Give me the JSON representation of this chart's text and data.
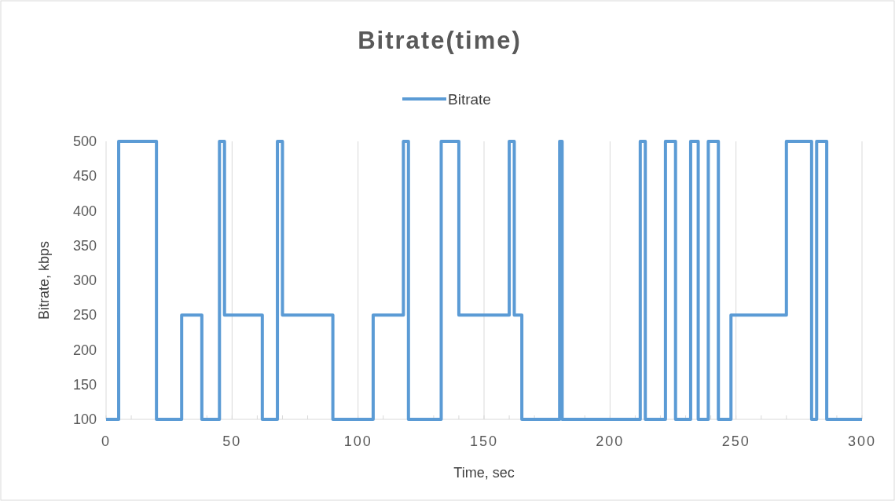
{
  "chart_data": {
    "type": "step",
    "title": "Bitrate(time)",
    "xlabel": "Time, sec",
    "ylabel": "Bitrate, kbps",
    "x": [
      0,
      5,
      20,
      30,
      38,
      45,
      47,
      62,
      68,
      70,
      90,
      106,
      118,
      120,
      133,
      140,
      160,
      162,
      165,
      180,
      181,
      212,
      214,
      222,
      226,
      232,
      235,
      239,
      243,
      248,
      270,
      280,
      282,
      286,
      300
    ],
    "series": [
      {
        "name": "Bitrate",
        "color": "#5b9bd5",
        "values": [
          100,
          500,
          100,
          250,
          100,
          500,
          250,
          100,
          500,
          250,
          100,
          250,
          500,
          100,
          500,
          250,
          500,
          250,
          100,
          500,
          100,
          500,
          100,
          500,
          100,
          500,
          100,
          500,
          100,
          250,
          500,
          100,
          500,
          100,
          100
        ]
      }
    ],
    "xlim": [
      0,
      300
    ],
    "xticks": [
      0,
      {
        "value": 10,
        "label": null
      },
      {
        "value": 20,
        "label": null
      },
      {
        "value": 30,
        "label": null
      },
      {
        "value": 40,
        "label": null
      },
      50,
      {
        "value": 60,
        "label": null
      },
      {
        "value": 70,
        "label": null
      },
      {
        "value": 80,
        "label": null
      },
      {
        "value": 90,
        "label": null
      },
      100,
      {
        "value": 110,
        "label": null
      },
      {
        "value": 120,
        "label": null
      },
      {
        "value": 130,
        "label": null
      },
      {
        "value": 140,
        "label": null
      },
      150,
      {
        "value": 160,
        "label": null
      },
      {
        "value": 170,
        "label": null
      },
      {
        "value": 180,
        "label": null
      },
      {
        "value": 190,
        "label": null
      },
      200,
      {
        "value": 210,
        "label": null
      },
      {
        "value": 220,
        "label": null
      },
      {
        "value": 230,
        "label": null
      },
      {
        "value": 240,
        "label": null
      },
      250,
      {
        "value": 260,
        "label": null
      },
      {
        "value": 270,
        "label": null
      },
      {
        "value": 280,
        "label": null
      },
      {
        "value": 290,
        "label": null
      },
      300
    ],
    "ylim": [
      100,
      500
    ],
    "yticks": [
      100,
      150,
      200,
      250,
      300,
      350,
      400,
      450,
      500
    ],
    "grid": "x",
    "legend": "top",
    "line_style": "solid"
  }
}
